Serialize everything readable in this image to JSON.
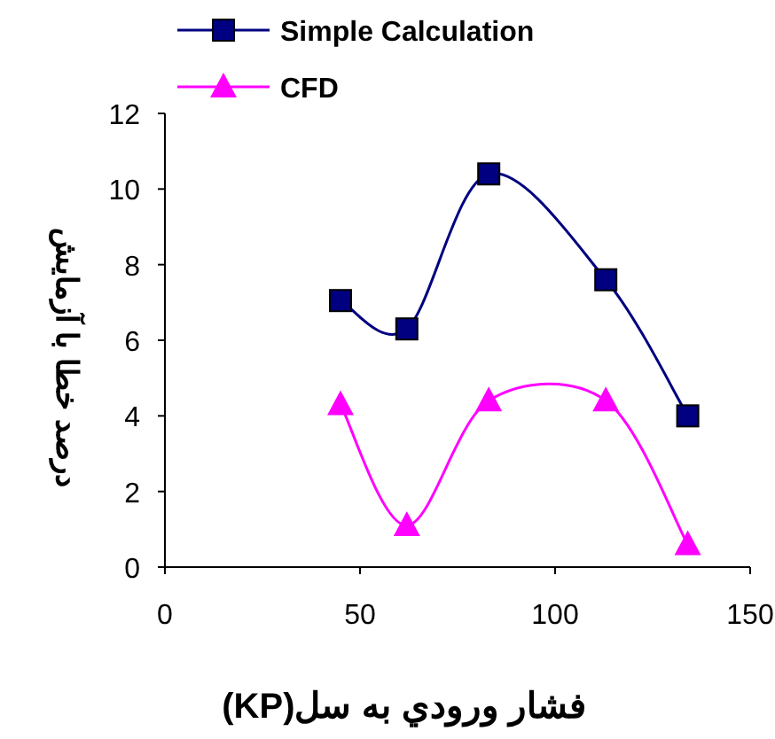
{
  "chart_data": {
    "type": "line",
    "xlabel": "فشار ورودي به سل(KP)",
    "ylabel": "درصد خطا با آزمایش",
    "xlim": [
      0,
      150
    ],
    "ylim": [
      0,
      12
    ],
    "xticks": [
      0,
      50,
      100,
      150
    ],
    "yticks": [
      0,
      2,
      4,
      6,
      8,
      10,
      12
    ],
    "grid": false,
    "legend": "top",
    "line_style": "solid",
    "series": [
      {
        "name": "Simple Calculation",
        "color": "#000080",
        "marker": "square",
        "x": [
          45,
          62,
          83,
          113,
          134
        ],
        "values": [
          7.05,
          6.3,
          10.4,
          7.6,
          4.0
        ]
      },
      {
        "name": "CFD",
        "color": "#ff00ff",
        "marker": "triangle",
        "x": [
          45,
          62,
          83,
          113,
          134
        ],
        "values": [
          4.3,
          1.1,
          4.4,
          4.4,
          0.6
        ]
      }
    ]
  }
}
